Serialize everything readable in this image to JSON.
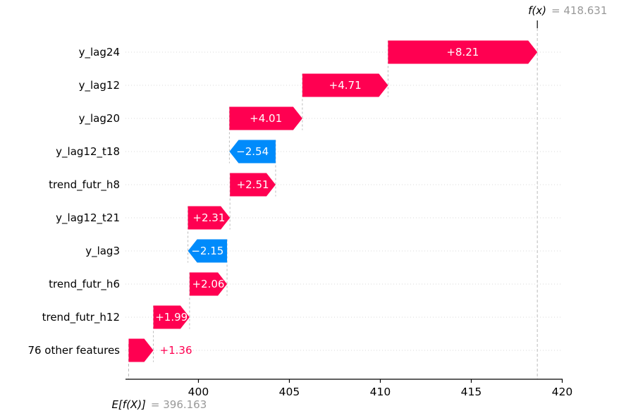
{
  "chart_data": {
    "type": "waterfall",
    "variant": "shap-waterfall",
    "fx_label": "f(x)",
    "fx_value": 418.631,
    "fx_value_text": "= 418.631",
    "base_label": "E[f(X)]",
    "base_value": 396.163,
    "base_value_text": "= 396.163",
    "features": [
      {
        "name": "y_lag24",
        "value": 8.21,
        "label": "+8.21"
      },
      {
        "name": "y_lag12",
        "value": 4.71,
        "label": "+4.71"
      },
      {
        "name": "y_lag20",
        "value": 4.01,
        "label": "+4.01"
      },
      {
        "name": "y_lag12_t18",
        "value": -2.54,
        "label": "−2.54"
      },
      {
        "name": "trend_futr_h8",
        "value": 2.51,
        "label": "+2.51"
      },
      {
        "name": "y_lag12_t21",
        "value": 2.31,
        "label": "+2.31"
      },
      {
        "name": "y_lag3",
        "value": -2.15,
        "label": "−2.15"
      },
      {
        "name": "trend_futr_h6",
        "value": 2.06,
        "label": "+2.06"
      },
      {
        "name": "trend_futr_h12",
        "value": 1.99,
        "label": "+1.99"
      },
      {
        "name": "76 other features",
        "value": 1.36,
        "label": "+1.36",
        "label_outside": true
      }
    ],
    "x_ticks": [
      400,
      405,
      410,
      415,
      420
    ],
    "x_range": [
      395.99,
      420.02
    ],
    "grid": "horizontal-dotted",
    "legend": null,
    "colors": {
      "positive": "#ff0051",
      "negative": "#008bfb",
      "bar_text": "#ffffff",
      "muted_text": "#999999",
      "connector": "#bbbbbb",
      "gridline": "#d9d9d9",
      "axis": "#000000"
    }
  }
}
